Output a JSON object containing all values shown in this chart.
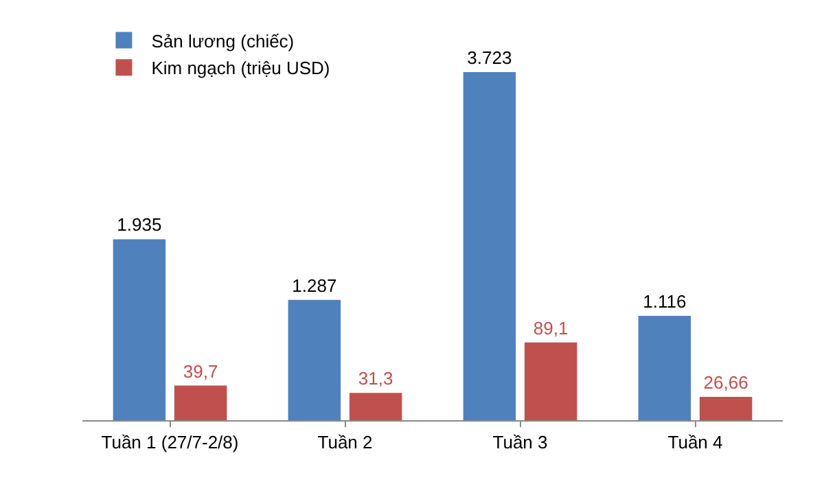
{
  "chart_data": {
    "type": "bar",
    "categories": [
      "Tuần 1 (27/7-2/8)",
      "Tuần 2",
      "Tuần 3",
      "Tuần 4"
    ],
    "series": [
      {
        "name": "Sản lương (chiếc)",
        "color": "#4f81bd",
        "values": [
          1935,
          1287,
          3723,
          1116
        ],
        "value_labels": [
          "1.935",
          "1.287",
          "3.723",
          "1.116"
        ]
      },
      {
        "name": "Kim ngạch (triệu USD)",
        "color": "#c0504d",
        "axis": "y2",
        "values": [
          39.7,
          31.3,
          89.1,
          26.66
        ],
        "value_labels": [
          "39,7",
          "31,3",
          "89,1",
          "26,66"
        ]
      }
    ],
    "ylim": [
      0,
      4200
    ],
    "y2lim": [
      0,
      450
    ],
    "legend": "top left",
    "tick_labels": "x",
    "grid": false
  }
}
